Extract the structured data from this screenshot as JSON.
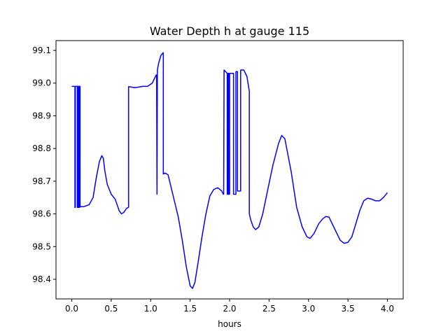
{
  "chart_data": {
    "type": "line",
    "title": "Water Depth h at gauge 115",
    "xlabel": "hours",
    "ylabel": "",
    "xlim": [
      -0.2,
      4.2
    ],
    "ylim": [
      98.34,
      99.13
    ],
    "xticks": [
      0.0,
      0.5,
      1.0,
      1.5,
      2.0,
      2.5,
      3.0,
      3.5,
      4.0
    ],
    "xtick_labels": [
      "0.0",
      "0.5",
      "1.0",
      "1.5",
      "2.0",
      "2.5",
      "3.0",
      "3.5",
      "4.0"
    ],
    "yticks": [
      98.4,
      98.5,
      98.6,
      98.7,
      98.8,
      98.9,
      99.0,
      99.1
    ],
    "ytick_labels": [
      "98.4",
      "98.5",
      "98.6",
      "98.7",
      "98.8",
      "98.9",
      "99.0",
      "99.1"
    ],
    "grid": false,
    "series": [
      {
        "color": "#0000ff",
        "x": [
          0.0,
          0.04,
          0.04,
          0.045,
          0.045,
          0.07,
          0.07,
          0.075,
          0.075,
          0.085,
          0.085,
          0.09,
          0.09,
          0.095,
          0.095,
          0.1,
          0.1,
          0.105,
          0.105,
          0.15,
          0.22,
          0.27,
          0.31,
          0.35,
          0.38,
          0.4,
          0.42,
          0.45,
          0.5,
          0.55,
          0.6,
          0.63,
          0.66,
          0.68,
          0.7,
          0.72,
          0.72,
          0.73,
          0.8,
          0.9,
          0.96,
          1.02,
          1.07,
          1.075,
          1.08,
          1.08,
          1.085,
          1.1,
          1.13,
          1.16,
          1.16,
          1.18,
          1.22,
          1.3,
          1.35,
          1.4,
          1.45,
          1.5,
          1.53,
          1.56,
          1.6,
          1.65,
          1.7,
          1.75,
          1.8,
          1.85,
          1.9,
          1.92,
          1.925,
          1.93,
          1.93,
          1.97,
          1.97,
          1.98,
          1.98,
          1.99,
          1.99,
          2.0,
          2.0,
          2.05,
          2.05,
          2.08,
          2.08,
          2.1,
          2.1,
          2.14,
          2.14,
          2.18,
          2.22,
          2.25,
          2.25,
          2.27,
          2.3,
          2.33,
          2.37,
          2.42,
          2.48,
          2.55,
          2.62,
          2.66,
          2.7,
          2.78,
          2.85,
          2.92,
          2.98,
          3.02,
          3.07,
          3.13,
          3.18,
          3.22,
          3.26,
          3.3,
          3.35,
          3.4,
          3.45,
          3.5,
          3.55,
          3.6,
          3.65,
          3.7,
          3.75,
          3.8,
          3.85,
          3.9,
          3.95,
          4.0
        ],
        "y": [
          98.99,
          98.99,
          98.62,
          98.62,
          98.99,
          98.99,
          98.62,
          98.62,
          98.99,
          98.99,
          98.62,
          98.62,
          98.99,
          98.99,
          98.62,
          98.62,
          98.99,
          98.99,
          98.622,
          98.622,
          98.628,
          98.65,
          98.71,
          98.76,
          98.778,
          98.77,
          98.73,
          98.69,
          98.66,
          98.645,
          98.61,
          98.6,
          98.605,
          98.612,
          98.618,
          98.62,
          98.989,
          98.989,
          98.986,
          98.99,
          98.99,
          99.0,
          99.025,
          99.025,
          98.66,
          98.66,
          99.04,
          99.06,
          99.085,
          99.093,
          98.722,
          98.725,
          98.72,
          98.64,
          98.59,
          98.52,
          98.44,
          98.38,
          98.372,
          98.39,
          98.45,
          98.53,
          98.6,
          98.655,
          98.675,
          98.68,
          98.67,
          98.66,
          98.66,
          99.04,
          99.04,
          99.03,
          98.66,
          98.66,
          99.03,
          99.03,
          98.66,
          98.66,
          99.03,
          99.03,
          98.66,
          98.66,
          99.035,
          99.035,
          98.67,
          98.67,
          99.04,
          99.04,
          99.02,
          98.975,
          98.6,
          98.58,
          98.56,
          98.552,
          98.56,
          98.6,
          98.67,
          98.75,
          98.815,
          98.84,
          98.83,
          98.73,
          98.62,
          98.56,
          98.53,
          98.525,
          98.54,
          98.57,
          98.585,
          98.592,
          98.59,
          98.57,
          98.545,
          98.52,
          98.51,
          98.513,
          98.53,
          98.57,
          98.61,
          98.64,
          98.648,
          98.645,
          98.64,
          98.64,
          98.65,
          98.665
        ]
      }
    ]
  }
}
